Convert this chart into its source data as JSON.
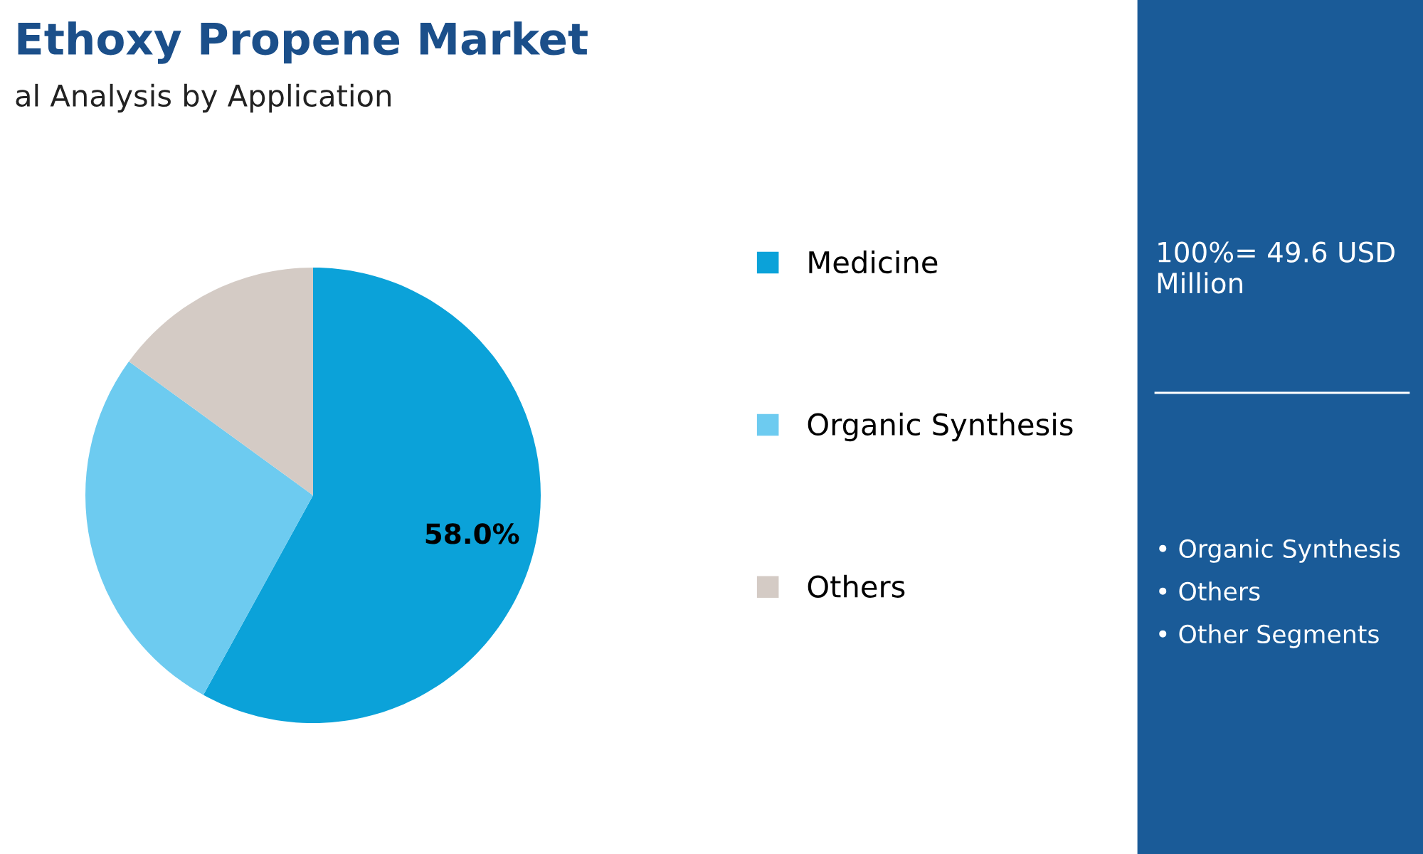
{
  "chart_data": {
    "type": "pie",
    "title": "Ethoxy Propene Market",
    "subtitle": "al Analysis by Application",
    "categories": [
      "Medicine",
      "Organic Synthesis",
      "Others"
    ],
    "values": [
      58.0,
      27,
      15
    ],
    "colors": [
      "#0ba2d9",
      "#6dcbf0",
      "#d4cbc5"
    ],
    "value_labels": [
      "58.0%",
      null,
      null
    ],
    "legend": "right",
    "annotations": [
      "100%= 49.6 USD Million",
      "• Organic Synthesis",
      "• Others",
      "• Other Segments"
    ]
  }
}
